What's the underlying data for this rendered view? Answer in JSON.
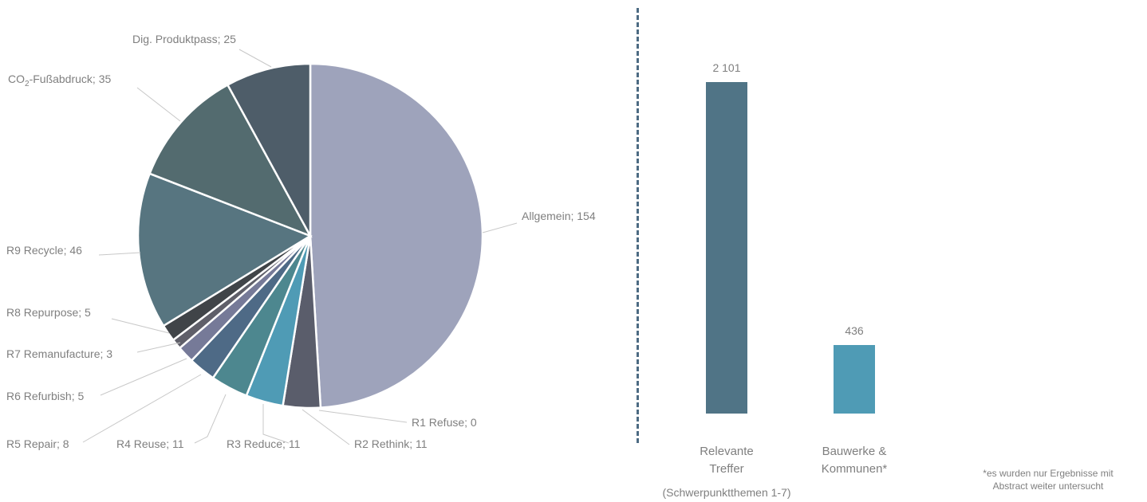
{
  "chart_data": [
    {
      "type": "pie",
      "slices": [
        {
          "label": "Allgemein",
          "value": 154,
          "color": "#9ea3bb"
        },
        {
          "label": "R1 Refuse",
          "value": 0,
          "color": "#4a5268"
        },
        {
          "label": "R2 Rethink",
          "value": 11,
          "color": "#5a5d6b"
        },
        {
          "label": "R3 Reduce",
          "value": 11,
          "color": "#4f9bb5"
        },
        {
          "label": "R4 Reuse",
          "value": 11,
          "color": "#4d878f"
        },
        {
          "label": "R5 Repair",
          "value": 8,
          "color": "#4e6a86"
        },
        {
          "label": "R6 Refurbish",
          "value": 5,
          "color": "#767a98"
        },
        {
          "label": "R7 Remanufacture",
          "value": 3,
          "color": "#5f5f69"
        },
        {
          "label": "R8 Repurpose",
          "value": 5,
          "color": "#404448"
        },
        {
          "label": "R9 Recycle",
          "value": 46,
          "color": "#577580"
        },
        {
          "label": "CO2-Fußabdruck",
          "value": 35,
          "color": "#536b6f",
          "label_base": "CO",
          "label_sub": "2",
          "label_rest": "-Fußabdruck"
        },
        {
          "label": "Dig. Produktpass",
          "value": 25,
          "color": "#4e5d69"
        }
      ],
      "label_separator": "; "
    },
    {
      "type": "bar",
      "categories": [
        {
          "line1": "Relevante",
          "line2": "Treffer"
        },
        {
          "line1": "Bauwerke &",
          "line2": "Kommunen*"
        }
      ],
      "values": [
        2101,
        436
      ],
      "value_labels": [
        "2 101",
        "436"
      ],
      "colors": [
        "#507486",
        "#4f9bb5"
      ],
      "ylim": [
        0,
        2101
      ],
      "subnote": "(Schwerpunktthemen 1-7)"
    }
  ],
  "footnote": {
    "line1": "*es wurden nur Ergebnisse mit",
    "line2": "Abstract weiter untersucht"
  }
}
